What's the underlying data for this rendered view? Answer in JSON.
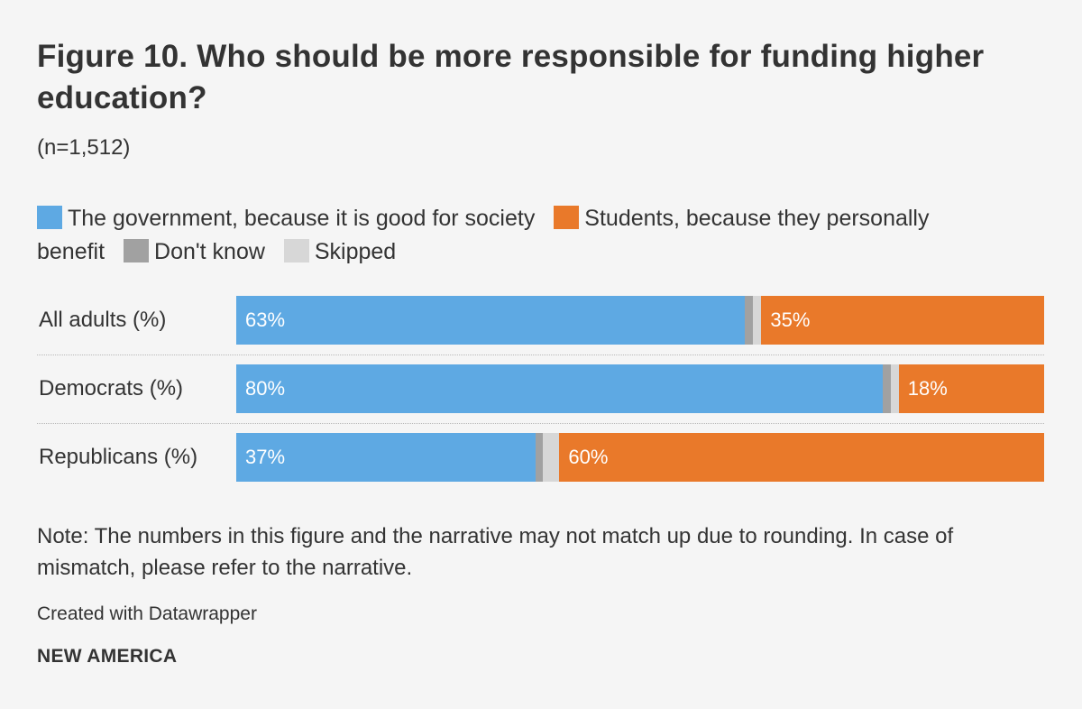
{
  "title": "Figure 10. Who should be more responsible for funding higher education?",
  "subtitle": "(n=1,512)",
  "note": "Note: The numbers in this figure and the narrative may not match up due to rounding. In case of mismatch, please refer to the narrative.",
  "credit": "Created with Datawrapper",
  "brand": "NEW AMERICA",
  "colors": {
    "government": "#5ea9e3",
    "students": "#e9792a",
    "dont_know": "#a1a1a1",
    "skipped": "#d7d7d7"
  },
  "chart_data": {
    "type": "bar",
    "orientation": "horizontal",
    "stacked": true,
    "title": "Figure 10. Who should be more responsible for funding higher education?",
    "categories": [
      "All adults (%)",
      "Democrats (%)",
      "Republicans (%)"
    ],
    "series": [
      {
        "key": "government",
        "name": "The government, because it is good for society",
        "values": [
          63,
          80,
          37
        ],
        "labels": [
          "63%",
          "80%",
          "37%"
        ]
      },
      {
        "key": "dont_know",
        "name": "Don't know",
        "values": [
          1,
          1,
          1
        ],
        "labels": [
          "",
          "",
          ""
        ]
      },
      {
        "key": "skipped",
        "name": "Skipped",
        "values": [
          1,
          1,
          2
        ],
        "labels": [
          "",
          "",
          ""
        ]
      },
      {
        "key": "students",
        "name": "Students, because they personally benefit",
        "values": [
          35,
          18,
          60
        ],
        "labels": [
          "35%",
          "18%",
          "60%"
        ]
      }
    ],
    "legend_order": [
      "government",
      "students",
      "dont_know",
      "skipped"
    ],
    "xlim": [
      0,
      100
    ]
  }
}
